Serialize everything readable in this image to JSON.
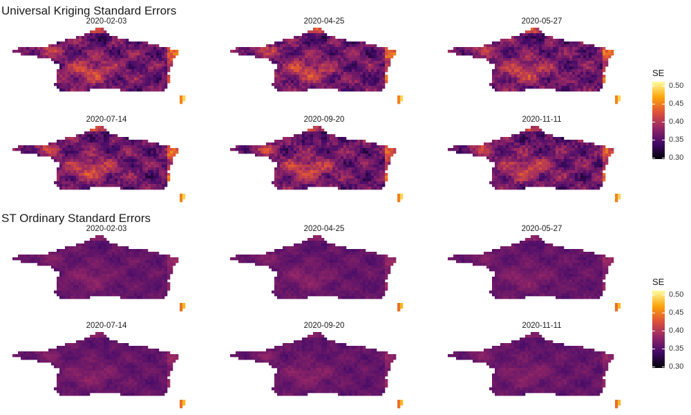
{
  "panels": [
    {
      "title": "Universal Kriging Standard Errors",
      "intensity": 1.0,
      "facets": [
        "2020-02-03",
        "2020-04-25",
        "2020-05-27",
        "2020-07-14",
        "2020-09-20",
        "2020-11-11"
      ],
      "legend": {
        "title": "SE",
        "ticks": [
          "0.50",
          "0.45",
          "0.40",
          "0.35",
          "0.30"
        ]
      }
    },
    {
      "title": "ST Ordinary Standard Errors",
      "intensity": 0.35,
      "facets": [
        "2020-02-03",
        "2020-04-25",
        "2020-05-27",
        "2020-07-14",
        "2020-09-20",
        "2020-11-11"
      ],
      "legend": {
        "title": "SE",
        "ticks": [
          "0.50",
          "0.45",
          "0.40",
          "0.35",
          "0.30"
        ]
      }
    }
  ],
  "color_scale": {
    "name": "inferno",
    "min": 0.3,
    "max": 0.5,
    "stops": [
      "#000004",
      "#420a68",
      "#932667",
      "#dd513a",
      "#fca50a",
      "#fcffa4"
    ]
  }
}
